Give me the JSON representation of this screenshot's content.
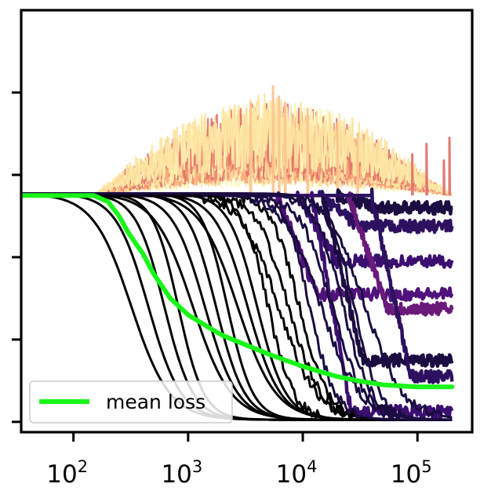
{
  "chart_data": {
    "type": "line",
    "title": "",
    "xlabel": "",
    "ylabel": "",
    "x_scale": "log",
    "xlim": [
      35,
      300000
    ],
    "ylim": [
      -0.05,
      2.0
    ],
    "grid": false,
    "legend": {
      "position": "bottom-left",
      "entries": [
        "mean loss"
      ]
    },
    "x_ticks": [
      {
        "base": "10",
        "exp": "2",
        "value": 100
      },
      {
        "base": "10",
        "exp": "3",
        "value": 1000
      },
      {
        "base": "10",
        "exp": "4",
        "value": 10000
      },
      {
        "base": "10",
        "exp": "5",
        "value": 100000
      }
    ],
    "y_tick_values": [
      0.0,
      0.4,
      0.8,
      1.2,
      1.6
    ],
    "initial_loss": 1.1,
    "x_end": 200000,
    "colors": {
      "mean_loss": "#1af51a",
      "converged_run": "#000000",
      "partial_runs": [
        "#1b0c41",
        "#2d1160",
        "#3b0f70",
        "#51127c",
        "#6a1a7a"
      ],
      "diverged_runs": [
        "#fff7b8",
        "#fde3a0",
        "#fcc590",
        "#f9a77a",
        "#f08a68",
        "#e0736a"
      ]
    },
    "series": [
      {
        "name": "mean loss",
        "color": "#1af51a",
        "x": [
          35,
          150,
          200,
          250,
          300,
          400,
          500,
          700,
          1000,
          1500,
          2000,
          3000,
          5000,
          7000,
          10000,
          15000,
          20000,
          30000,
          50000,
          100000,
          200000
        ],
        "y": [
          1.1,
          1.1,
          1.07,
          1.0,
          0.92,
          0.82,
          0.72,
          0.6,
          0.52,
          0.46,
          0.42,
          0.38,
          0.33,
          0.3,
          0.27,
          0.24,
          0.22,
          0.2,
          0.18,
          0.17,
          0.17
        ]
      }
    ],
    "converged_run_midpoints": [
      320,
      450,
      620,
      820,
      1100,
      1400,
      1750,
      2200,
      2700,
      3300,
      4000,
      5000,
      6100,
      7500,
      9300,
      11500,
      14500,
      18000,
      22500,
      28000,
      35000
    ],
    "partial_run_levels": [
      {
        "level": 1.04,
        "start": 20000
      },
      {
        "level": 0.95,
        "start": 14000
      },
      {
        "level": 0.78,
        "start": 9000
      },
      {
        "level": 0.62,
        "start": 6000
      },
      {
        "level": 0.55,
        "start": 25000
      },
      {
        "level": 0.3,
        "start": 15000
      },
      {
        "level": 0.22,
        "start": 40000
      },
      {
        "level": 0.05,
        "start": 12000
      }
    ],
    "diverged_band": {
      "start": 150,
      "peak_x": 5000,
      "peak_y": 1.6,
      "spikes": [
        {
          "x": 3500,
          "y": 1.55
        },
        {
          "x": 5500,
          "y": 1.63
        },
        {
          "x": 6200,
          "y": 1.58
        },
        {
          "x": 7000,
          "y": 1.55
        },
        {
          "x": 11000,
          "y": 1.52
        },
        {
          "x": 20000,
          "y": 1.45
        },
        {
          "x": 30000,
          "y": 1.4
        },
        {
          "x": 90000,
          "y": 1.3
        },
        {
          "x": 120000,
          "y": 1.35
        },
        {
          "x": 170000,
          "y": 1.27
        },
        {
          "x": 190000,
          "y": 1.38
        }
      ]
    }
  }
}
